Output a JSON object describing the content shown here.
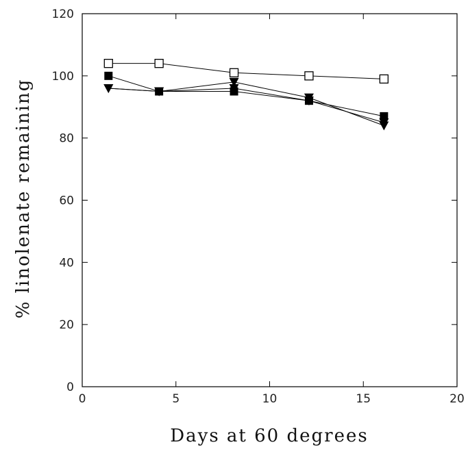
{
  "chart_data": {
    "type": "scatter",
    "title": "",
    "xlabel": "Days at 60 degrees",
    "ylabel": "% linolenate remaining",
    "xlim": [
      0,
      20
    ],
    "ylim": [
      0,
      120
    ],
    "x_ticks": [
      "0",
      "5",
      "10",
      "15",
      "20"
    ],
    "y_ticks": [
      "0",
      "20",
      "40",
      "60",
      "80",
      "100",
      "120"
    ],
    "grid": false,
    "legend": "none",
    "series": [
      {
        "marker": "open-square",
        "color": "#000000",
        "points": [
          [
            1.4,
            104
          ],
          [
            4.1,
            104
          ],
          [
            8.1,
            101
          ],
          [
            12.1,
            100
          ],
          [
            16.1,
            99
          ]
        ]
      },
      {
        "marker": "filled-square",
        "color": "#000000",
        "points": [
          [
            1.4,
            100
          ],
          [
            4.1,
            95
          ],
          [
            8.1,
            95
          ],
          [
            12.1,
            92
          ],
          [
            16.1,
            87
          ]
        ]
      },
      {
        "marker": "filled-triangle-down",
        "color": "#000000",
        "points": [
          [
            1.4,
            96
          ],
          [
            4.1,
            95
          ],
          [
            8.1,
            98
          ],
          [
            12.1,
            93
          ],
          [
            16.1,
            84
          ]
        ]
      },
      {
        "marker": "filled-triangle-down",
        "color": "#000000",
        "points": [
          [
            1.4,
            96
          ],
          [
            4.1,
            95
          ],
          [
            8.1,
            96
          ],
          [
            12.1,
            92
          ],
          [
            16.1,
            85
          ]
        ]
      }
    ]
  }
}
